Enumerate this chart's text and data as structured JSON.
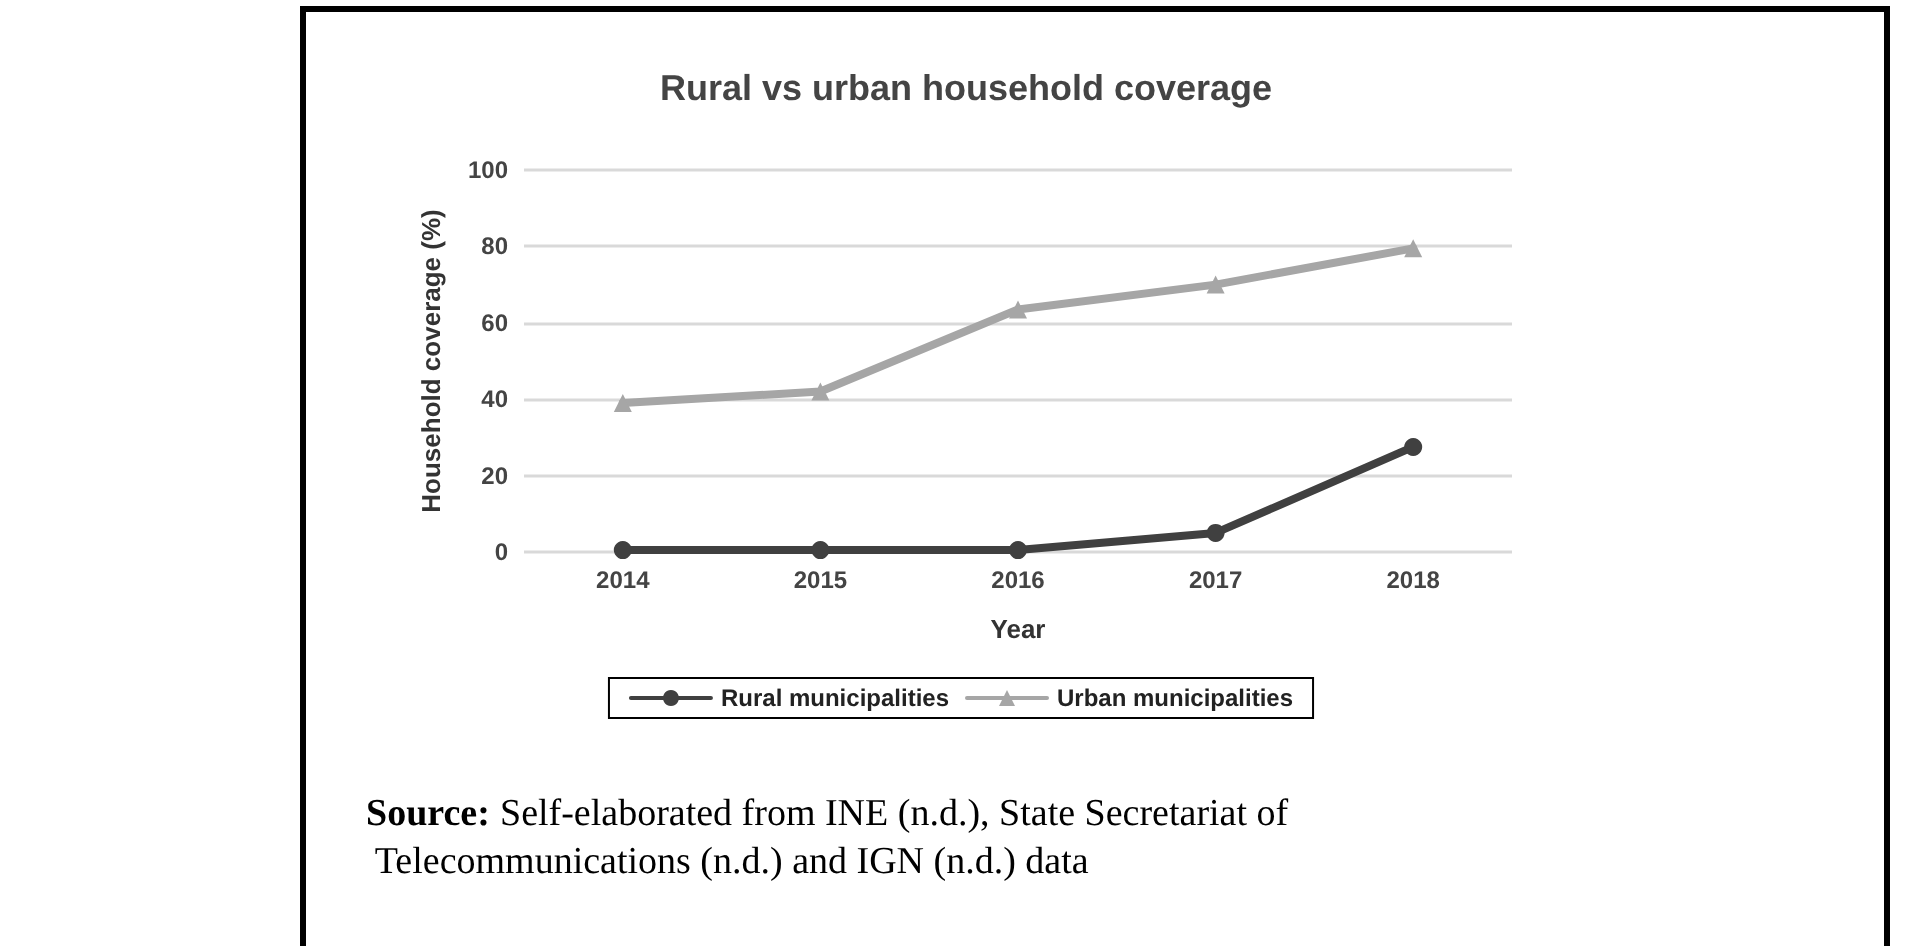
{
  "chart_data": {
    "type": "line",
    "title": "Rural vs urban household coverage",
    "xlabel": "Year",
    "ylabel": "Household coverage (%)",
    "categories": [
      "2014",
      "2015",
      "2016",
      "2017",
      "2018"
    ],
    "series": [
      {
        "name": "Rural municipalities",
        "color": "#404040",
        "marker": "circle",
        "values": [
          0.5,
          0.5,
          0.5,
          5,
          27.5
        ]
      },
      {
        "name": "Urban municipalities",
        "color": "#a6a6a6",
        "marker": "triangle",
        "values": [
          39,
          42,
          63.5,
          70,
          79.5
        ]
      }
    ],
    "ylim": [
      0,
      100
    ],
    "yticks": [
      0,
      20,
      40,
      60,
      80,
      100
    ],
    "grid": "y",
    "legend": "bottom",
    "annotations": [
      "Source: Self-elaborated from INE (n.d.), State Secretariat of Telecommunications (n.d.) and IGN (n.d.) data"
    ]
  }
}
